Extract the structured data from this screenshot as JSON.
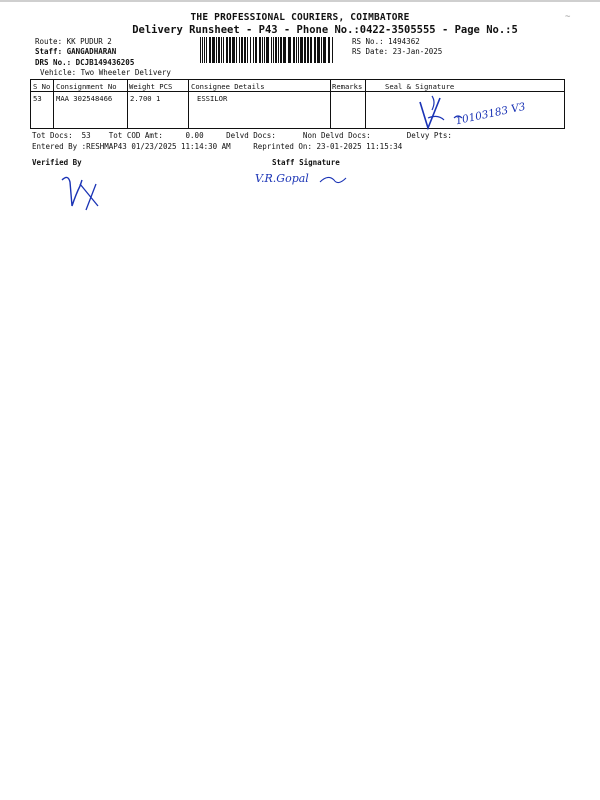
{
  "header": {
    "company": "THE PROFESSIONAL COURIERS, COIMBATORE",
    "runsheet_title": "Delivery Runsheet - P43 - Phone No.:0422-3505555 - Page No.:5"
  },
  "meta": {
    "route": "Route: KK PUDUR 2",
    "staff": "Staff: GANGADHARAN",
    "drs_no": "DRS No.: DCJB149436205",
    "vehicle": "Vehicle: Two Wheeler Delivery",
    "rs_no": "RS No.: 1494362",
    "rs_date": "RS Date: 23-Jan-2025"
  },
  "table": {
    "headers": {
      "sno": "S No",
      "consignment": "Consignment No",
      "weight_pcs": "Weight  PCS",
      "consignee": "Consignee Details",
      "remarks": "Remarks",
      "seal": "Seal & Signature"
    },
    "rows": [
      {
        "sno": "53",
        "consignment": "MAA 302548466",
        "weight_pcs": "2.700   1",
        "consignee": "ESSILOR",
        "remarks": "",
        "seal": ""
      }
    ]
  },
  "totals": {
    "line": "Tot Docs:  53    Tot COD Amt:     0.00     Delvd Docs:      Non Delvd Docs:        Delvy Pts:",
    "entered": "Entered By :RESHMAP43 01/23/2025 11:14:30 AM     Reprinted On: 23-01-2025 11:15:34"
  },
  "signatures": {
    "verified_by": "Verified By",
    "staff_signature": "Staff Signature"
  },
  "handwriting": {
    "seal_number": "10103183 V3",
    "staff_name": "V.R.Gopal"
  },
  "colors": {
    "ink": "#1a33b5",
    "text": "#111111"
  }
}
